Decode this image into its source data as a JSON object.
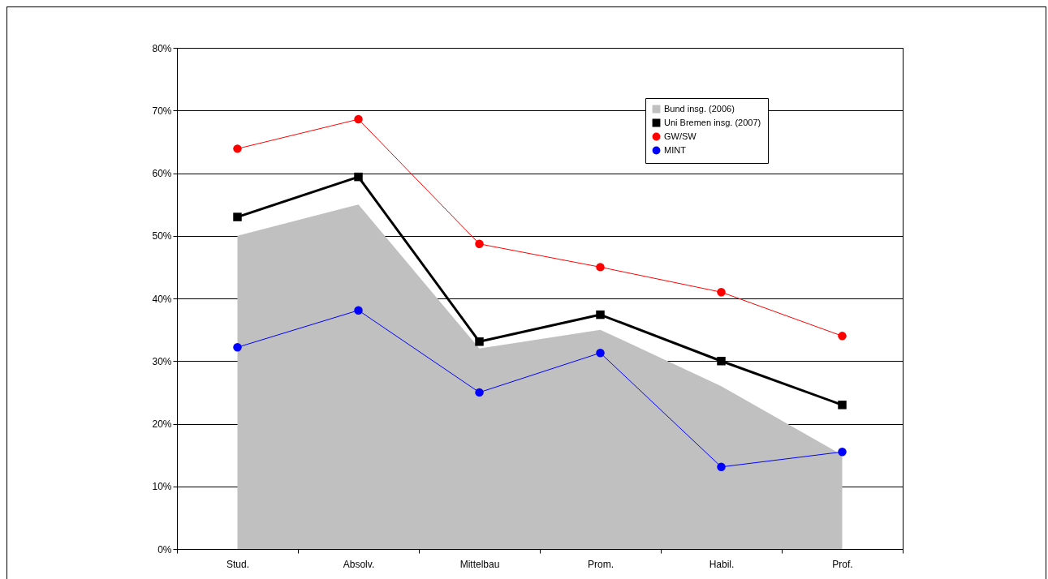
{
  "chart_data": {
    "type": "line",
    "categories": [
      "Stud.",
      "Absolv.",
      "Mittelbau",
      "Prom.",
      "Habil.",
      "Prof."
    ],
    "series": [
      {
        "name": "Bund insg. (2006)",
        "type": "area",
        "color": "#c0c0c0",
        "values": [
          50,
          55,
          32,
          35,
          26,
          15
        ]
      },
      {
        "name": "Uni Bremen insg. (2007)",
        "color": "#000000",
        "marker": "square",
        "values": [
          53,
          59.4,
          33.1,
          37.4,
          30,
          23
        ]
      },
      {
        "name": "GW/SW",
        "color": "#ff0000",
        "marker": "circle",
        "values": [
          63.9,
          68.6,
          48.7,
          45,
          41,
          34
        ]
      },
      {
        "name": "MINT",
        "color": "#0000ff",
        "marker": "circle",
        "values": [
          32.2,
          38.1,
          25,
          31.3,
          13.1,
          15.5
        ]
      }
    ],
    "ylim": [
      0,
      80
    ],
    "yticks": [
      {
        "value": 0,
        "label": "0%"
      },
      {
        "value": 10,
        "label": "10%"
      },
      {
        "value": 20,
        "label": "20%"
      },
      {
        "value": 30,
        "label": "30%"
      },
      {
        "value": 40,
        "label": "40%"
      },
      {
        "value": 50,
        "label": "50%"
      },
      {
        "value": 60,
        "label": "60%"
      },
      {
        "value": 70,
        "label": "70%"
      },
      {
        "value": 80,
        "label": "80%"
      }
    ],
    "grid": "y",
    "legend": "top right"
  }
}
